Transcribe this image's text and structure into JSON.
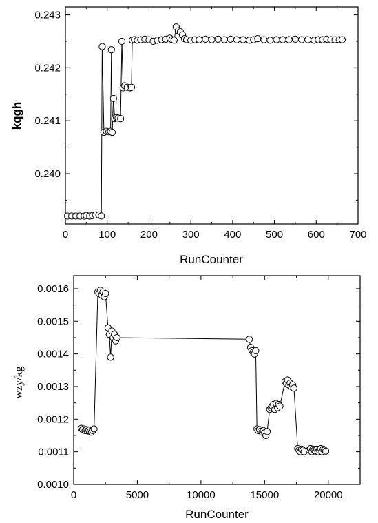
{
  "chart_data": [
    {
      "type": "scatter",
      "xlabel": "RunCounter",
      "ylabel": "kqgh",
      "xlim": [
        0,
        700
      ],
      "ylim": [
        0.23905,
        0.24315
      ],
      "x_ticks": [
        "0",
        "100",
        "200",
        "300",
        "400",
        "500",
        "600",
        "700"
      ],
      "y_ticks": [
        "0.240",
        "0.241",
        "0.242",
        "0.243"
      ],
      "grid": false,
      "series": [
        {
          "marker": "open-circle",
          "x": [
            5,
            15,
            25,
            35,
            45,
            50,
            58,
            65,
            72,
            80,
            86,
            88,
            92,
            98,
            104,
            108,
            110,
            112,
            115,
            118,
            122,
            126,
            132,
            135,
            138,
            142,
            148,
            155,
            158,
            160,
            165,
            172,
            180,
            190,
            200,
            210,
            220,
            230,
            240,
            250,
            255,
            260,
            265,
            270,
            275,
            280,
            285,
            290,
            300,
            310,
            320,
            335,
            350,
            365,
            380,
            395,
            410,
            425,
            440,
            450,
            460,
            475,
            490,
            505,
            520,
            535,
            550,
            565,
            580,
            595,
            605,
            615,
            625,
            635,
            645,
            655,
            662
          ],
          "y": [
            0.2392,
            0.2392,
            0.2392,
            0.2392,
            0.2392,
            0.23921,
            0.2392,
            0.23921,
            0.23922,
            0.23922,
            0.2392,
            0.2424,
            0.24078,
            0.2408,
            0.24079,
            0.2408,
            0.24234,
            0.24078,
            0.24142,
            0.24104,
            0.24106,
            0.24105,
            0.24104,
            0.2425,
            0.24162,
            0.24166,
            0.24163,
            0.24162,
            0.24163,
            0.24252,
            0.24253,
            0.24252,
            0.24253,
            0.24254,
            0.24253,
            0.2425,
            0.24252,
            0.24253,
            0.24254,
            0.24256,
            0.24253,
            0.24252,
            0.24277,
            0.2427,
            0.24268,
            0.24262,
            0.24255,
            0.24253,
            0.24252,
            0.24253,
            0.24253,
            0.24254,
            0.24253,
            0.24254,
            0.24253,
            0.24254,
            0.24253,
            0.24253,
            0.24252,
            0.24253,
            0.24255,
            0.24253,
            0.24252,
            0.24253,
            0.24253,
            0.24253,
            0.24254,
            0.24253,
            0.24253,
            0.24252,
            0.24253,
            0.24253,
            0.24254,
            0.24253,
            0.24253,
            0.24253,
            0.24253
          ]
        }
      ]
    },
    {
      "type": "scatter",
      "xlabel": "RunCounter",
      "ylabel": "wzy/kg",
      "xlim": [
        0,
        22500
      ],
      "ylim": [
        0.001,
        0.00164
      ],
      "x_ticks": [
        "0",
        "5000",
        "10000",
        "15000",
        "20000"
      ],
      "y_ticks": [
        "0.0010",
        "0.0011",
        "0.0012",
        "0.0013",
        "0.0014",
        "0.0015",
        "0.0016"
      ],
      "grid": false,
      "series": [
        {
          "marker": "open-circle",
          "x": [
            600,
            700,
            800,
            900,
            1000,
            1100,
            1200,
            1300,
            1400,
            1500,
            1600,
            1900,
            2000,
            2100,
            2200,
            2300,
            2400,
            2500,
            2700,
            2800,
            2900,
            3000,
            3100,
            3200,
            3300,
            3400,
            13800,
            13900,
            14000,
            14100,
            14200,
            14300,
            14400,
            14500,
            14600,
            14700,
            14800,
            14900,
            15000,
            15100,
            15200,
            15400,
            15500,
            15600,
            15700,
            15800,
            15900,
            16000,
            16100,
            16200,
            16600,
            16700,
            16800,
            16900,
            17000,
            17100,
            17200,
            17300,
            17600,
            17700,
            17800,
            17900,
            18000,
            18100,
            18500,
            18600,
            18700,
            18800,
            18900,
            19000,
            19100,
            19200,
            19300,
            19400,
            19500,
            19600,
            19700,
            19800
          ],
          "y": [
            0.001172,
            0.001168,
            0.00117,
            0.001165,
            0.001168,
            0.001164,
            0.001166,
            0.001162,
            0.00116,
            0.001165,
            0.00117,
            0.00159,
            0.001585,
            0.001595,
            0.00158,
            0.00159,
            0.001575,
            0.001585,
            0.00148,
            0.00146,
            0.00139,
            0.00147,
            0.00145,
            0.00146,
            0.00144,
            0.00145,
            0.001445,
            0.00142,
            0.00141,
            0.001405,
            0.0014,
            0.00141,
            0.00117,
            0.001165,
            0.001168,
            0.001163,
            0.00116,
            0.001165,
            0.001158,
            0.00115,
            0.001162,
            0.00123,
            0.001235,
            0.00124,
            0.001245,
            0.00123,
            0.001248,
            0.001235,
            0.001245,
            0.00124,
            0.001315,
            0.00131,
            0.00132,
            0.001305,
            0.00131,
            0.0013,
            0.001305,
            0.001295,
            0.00111,
            0.001105,
            0.0011,
            0.001108,
            0.001105,
            0.0011,
            0.001105,
            0.00111,
            0.0011,
            0.001108,
            0.001105,
            0.001102,
            0.001108,
            0.0011,
            0.001105,
            0.00111,
            0.0011,
            0.001108,
            0.001105,
            0.001102
          ]
        }
      ]
    }
  ]
}
